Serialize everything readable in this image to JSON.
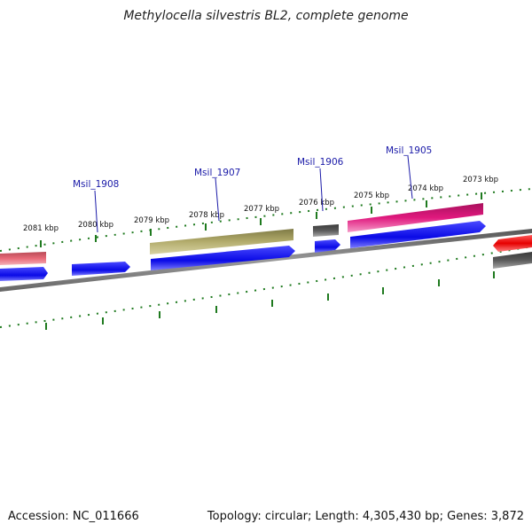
{
  "title": "Methylocella silvestris BL2, complete genome",
  "footer": {
    "accession": "Accession: NC_011666",
    "summary": "Topology: circular; Length: 4,305,430 bp; Genes: 3,872"
  },
  "ticks": [
    {
      "label": "2081 kbp"
    },
    {
      "label": "2080 kbp"
    },
    {
      "label": "2079 kbp"
    },
    {
      "label": "2078 kbp"
    },
    {
      "label": "2077 kbp"
    },
    {
      "label": "2076 kbp"
    },
    {
      "label": "2075 kbp"
    },
    {
      "label": "2074 kbp"
    },
    {
      "label": "2073 kbp"
    }
  ],
  "gene_labels": [
    {
      "name": "Msil_1908"
    },
    {
      "name": "Msil_1907"
    },
    {
      "name": "Msil_1906"
    },
    {
      "name": "Msil_1905"
    }
  ],
  "colors": {
    "cds_blue": "#0a0ae6",
    "pseudo_pink": "#e86a78",
    "olive": "#b3ac6c",
    "gray_feature": "#5a5a5a",
    "magenta": "#e0197e",
    "red": "#e60000",
    "tick_green": "#1f7a1f",
    "backbone": "#7a7a7a",
    "label_blue": "#1a1aa8"
  }
}
